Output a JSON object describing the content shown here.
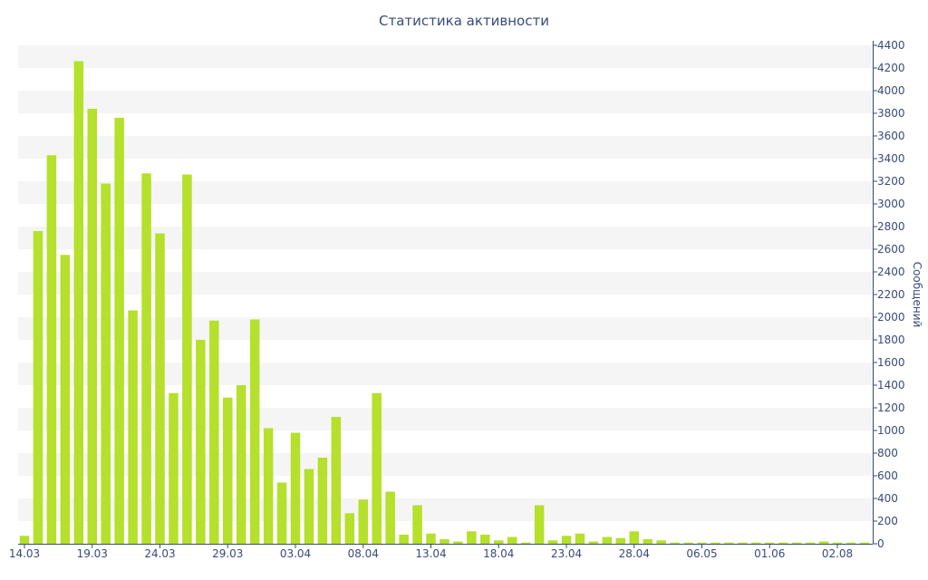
{
  "chart_data": {
    "type": "bar",
    "title": "Статистика активности",
    "ylabel": "Сообщений",
    "ylim": [
      0,
      4400
    ],
    "yticks": [
      0,
      200,
      400,
      600,
      800,
      1000,
      1200,
      1400,
      1600,
      1800,
      2000,
      2200,
      2400,
      2600,
      2800,
      3000,
      3200,
      3400,
      3600,
      3800,
      4000,
      4200,
      4400
    ],
    "y_axis_side": "right",
    "grid": "horizontal alternating bands",
    "x_tick_labels": [
      "14.03",
      "19.03",
      "24.03",
      "29.03",
      "03.04",
      "08.04",
      "13.04",
      "18.04",
      "23.04",
      "28.04",
      "06.05",
      "01.06",
      "02.08"
    ],
    "x_tick_indices": [
      0,
      5,
      10,
      15,
      20,
      25,
      30,
      35,
      40,
      45,
      50,
      55,
      60
    ],
    "values": [
      70,
      2760,
      3430,
      2550,
      4260,
      3840,
      3180,
      3760,
      2060,
      3270,
      2740,
      1330,
      3260,
      1800,
      1970,
      1290,
      1400,
      1980,
      1020,
      540,
      980,
      660,
      760,
      1120,
      270,
      390,
      1330,
      460,
      80,
      340,
      90,
      40,
      20,
      110,
      80,
      30,
      60,
      10,
      340,
      30,
      70,
      90,
      20,
      60,
      50,
      110,
      40,
      30,
      10,
      10,
      10,
      10,
      10,
      10,
      10,
      10,
      10,
      10,
      10,
      20,
      10,
      10,
      10
    ],
    "colors": {
      "bar": "#b5e02b",
      "band": "#f5f5f5",
      "axis": "#3a4a7a",
      "text": "#3a4a7a"
    }
  }
}
